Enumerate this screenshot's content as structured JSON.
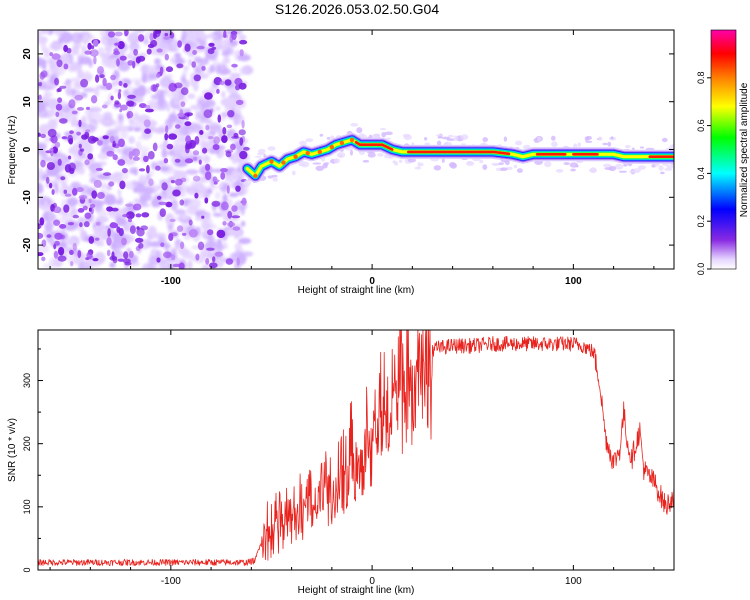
{
  "title": "S126.2026.053.02.50.G04",
  "chart_data": [
    {
      "type": "heatmap",
      "name": "spectrogram",
      "xlabel": "Height of straight line (km)",
      "ylabel": "Frequency (Hz)",
      "xlim": [
        -166,
        150
      ],
      "ylim": [
        -25,
        25
      ],
      "xticks": [
        -100,
        0,
        100
      ],
      "xtick_labels": [
        "-100",
        "0",
        "100"
      ],
      "yticks": [
        -20,
        -10,
        0,
        10,
        20
      ],
      "ytick_labels": [
        "-20",
        "-10",
        "0",
        "10",
        "20"
      ],
      "noise_region_x": [
        -166,
        -62
      ],
      "ridge": {
        "x": [
          -62,
          -58,
          -55,
          -50,
          -46,
          -42,
          -38,
          -34,
          -30,
          -26,
          -22,
          -18,
          -14,
          -10,
          -6,
          0,
          5,
          10,
          15,
          20,
          40,
          60,
          70,
          75,
          80,
          90,
          100,
          110,
          120,
          125,
          130,
          140,
          150
        ],
        "y": [
          -4,
          -5.5,
          -3.5,
          -2.5,
          -3.5,
          -2,
          -1.5,
          -0.5,
          -1,
          -0.5,
          0,
          1,
          1.5,
          2,
          1,
          1,
          1,
          0,
          -0.5,
          -0.5,
          -0.5,
          -0.5,
          -1,
          -1.5,
          -1,
          -1,
          -1,
          -1,
          -1,
          -1.5,
          -1.5,
          -1.5,
          -1.5
        ]
      },
      "colorbar": {
        "label": "Normalized spectral amplitude",
        "range": [
          0,
          1
        ],
        "ticks": [
          0.0,
          0.2,
          0.4,
          0.6,
          0.8
        ],
        "tick_labels": [
          "0.0",
          "0.2",
          "0.4",
          "0.6",
          "0.8"
        ],
        "colors": [
          "#ffffff",
          "#8a2be2",
          "#0000ff",
          "#00ffff",
          "#00ff00",
          "#ffff00",
          "#ff8000",
          "#ff0000",
          "#ff00aa"
        ]
      }
    },
    {
      "type": "line",
      "name": "snr",
      "xlabel": "Height of straight line (km)",
      "ylabel": "SNR (10 * v/v)",
      "xlim": [
        -166,
        150
      ],
      "ylim": [
        0,
        380
      ],
      "xticks": [
        -100,
        0,
        100
      ],
      "xtick_labels": [
        "-100",
        "0",
        "100"
      ],
      "yticks": [
        0,
        100,
        200,
        300
      ],
      "ytick_labels": [
        "0",
        "100",
        "200",
        "300"
      ],
      "color": "#e8231e",
      "series": [
        {
          "name": "SNR",
          "x": [
            -166,
            -150,
            -130,
            -110,
            -90,
            -75,
            -62,
            -58,
            -54,
            -50,
            -45,
            -40,
            -35,
            -30,
            -25,
            -20,
            -15,
            -10,
            -5,
            0,
            5,
            10,
            15,
            20,
            25,
            30,
            40,
            50,
            60,
            70,
            80,
            90,
            100,
            105,
            110,
            113,
            116,
            120,
            123,
            125,
            127,
            129,
            131,
            133,
            135,
            137,
            140,
            143,
            146,
            150
          ],
          "y": [
            12,
            12,
            12,
            12,
            12,
            12,
            12,
            15,
            60,
            75,
            90,
            100,
            110,
            125,
            140,
            155,
            175,
            200,
            220,
            245,
            275,
            300,
            320,
            335,
            345,
            350,
            355,
            355,
            358,
            358,
            358,
            358,
            358,
            355,
            345,
            300,
            210,
            170,
            190,
            250,
            200,
            175,
            200,
            220,
            160,
            150,
            140,
            120,
            100,
            120
          ]
        }
      ]
    }
  ]
}
